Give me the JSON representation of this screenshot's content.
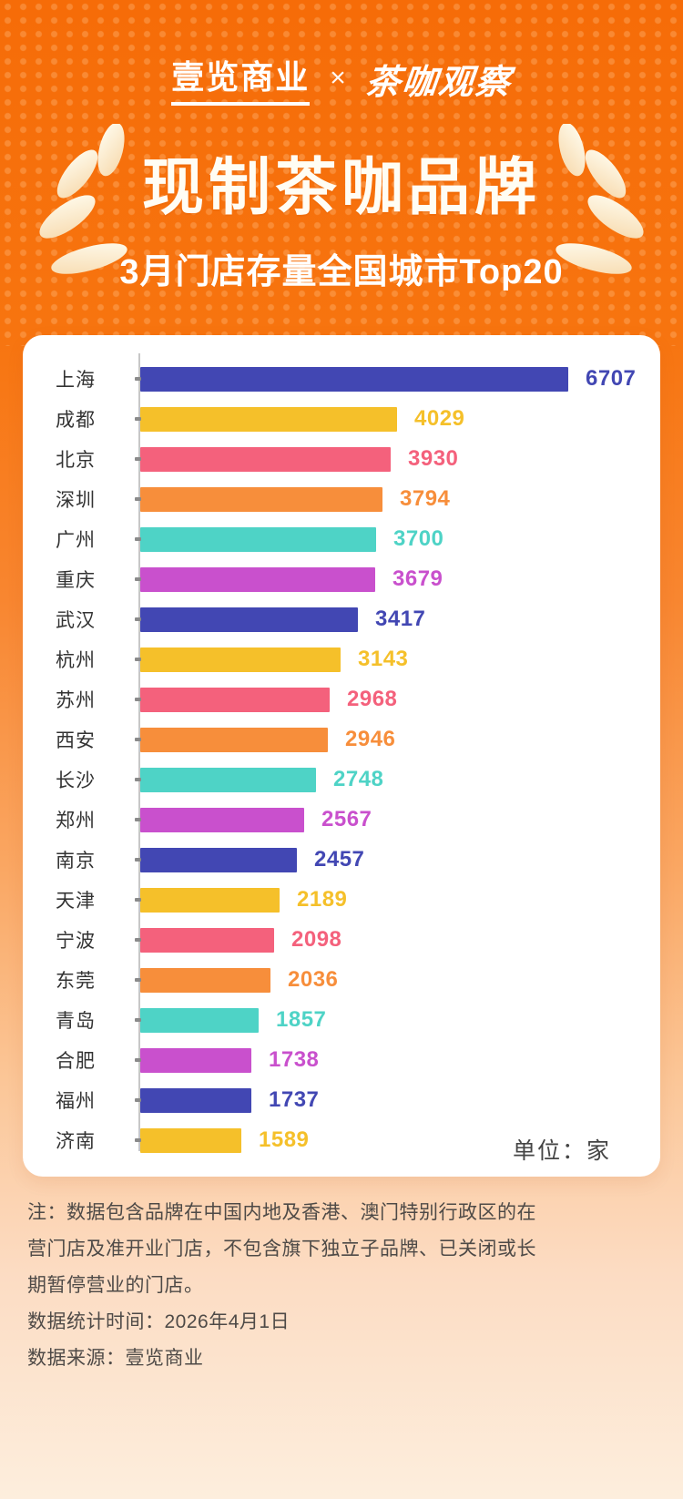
{
  "header": {
    "brand_left": "壹览商业",
    "separator": "×",
    "brand_right": "茶咖观察"
  },
  "title": "现制茶咖品牌",
  "subtitle": "3月门店存量全国城市Top20",
  "unit_label": "单位：家",
  "notes": {
    "note": "注：数据包含品牌在中国内地及香港、澳门特别行政区的在营门店及准开业门店，不包含旗下独立子品牌、已关闭或长期暂停营业的门店。",
    "stat_time": "数据统计时间：2026年4月1日",
    "source": "数据来源：壹览商业"
  },
  "colors": {
    "background_top": "#f76c08",
    "card": "#ffffff",
    "palette": [
      "#4247b3",
      "#f5c02a",
      "#f4617c",
      "#f78e3b",
      "#4ed3c6",
      "#c950cd"
    ],
    "label_text": "#333333",
    "axis_line": "#c7c7c7",
    "note_text": "#4e4a47"
  },
  "chart_data": {
    "type": "bar",
    "orientation": "horizontal",
    "title": "现制茶咖品牌3月门店存量全国城市Top20",
    "unit": "家",
    "xlim": [
      0,
      6707
    ],
    "grid": false,
    "legend": false,
    "categories": [
      "上海",
      "成都",
      "北京",
      "深圳",
      "广州",
      "重庆",
      "武汉",
      "杭州",
      "苏州",
      "西安",
      "长沙",
      "郑州",
      "南京",
      "天津",
      "宁波",
      "东莞",
      "青岛",
      "合肥",
      "福州",
      "济南"
    ],
    "values": [
      6707,
      4029,
      3930,
      3794,
      3700,
      3679,
      3417,
      3143,
      2968,
      2946,
      2748,
      2567,
      2457,
      2189,
      2098,
      2036,
      1857,
      1738,
      1737,
      1589
    ]
  }
}
